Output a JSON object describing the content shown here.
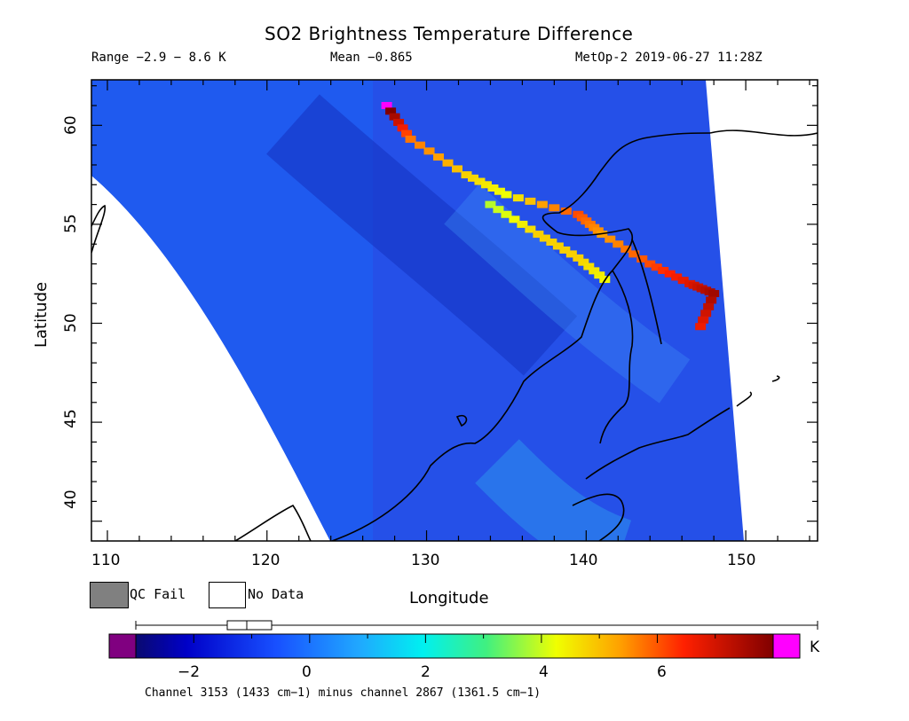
{
  "title": "SO2 Brightness Temperature Difference",
  "range_text": "Range −2.9 − 8.6 K",
  "mean_text": "Mean −0.865",
  "satellite_text": "MetOp-2 2019-06-27 11:28Z",
  "axes": {
    "xlabel": "Longitude",
    "ylabel": "Latitude",
    "x_range": [
      109,
      154.5
    ],
    "y_range": [
      39,
      62.3
    ],
    "x_ticks": [
      "110",
      "120",
      "130",
      "140",
      "150"
    ],
    "y_ticks": [
      "40",
      "45",
      "50",
      "55",
      "60"
    ]
  },
  "legend": {
    "qc_fail_label": "QC Fail",
    "no_data_label": "No Data",
    "qc_fail_color": "#808080",
    "no_data_color": "#ffffff"
  },
  "colorbar": {
    "unit": "K",
    "min": -3,
    "max": 8,
    "tick_labels": [
      "−2",
      "0",
      "2",
      "4",
      "6"
    ],
    "underflow_color": "#800080",
    "overflow_color": "#ff00ff",
    "boxplot_summary": "box ≈ −1.4 to −0.6, median ≈ −1.0",
    "caption": "Channel 3153 (1433 cm−1) minus channel 2867 (1361.5 cm−1)"
  },
  "chart_data": {
    "type": "heatmap",
    "title": "SO2 Brightness Temperature Difference",
    "xlabel": "Longitude",
    "ylabel": "Latitude",
    "xlim": [
      109,
      154.5
    ],
    "ylim": [
      39,
      62.3
    ],
    "value_range": [
      -2.9,
      8.6
    ],
    "mean": -0.865,
    "swath": "Satellite swath covering roughly 111°E–150°E; white areas outside swath = No Data",
    "high_value_band": [
      {
        "lon": 127.5,
        "lat": 61.0,
        "value": 8.6
      },
      {
        "lon": 129.0,
        "lat": 59.3,
        "value": 5.0
      },
      {
        "lon": 132.5,
        "lat": 57.5,
        "value": 4.0
      },
      {
        "lon": 135.0,
        "lat": 56.5,
        "value": 3.5
      },
      {
        "lon": 139.5,
        "lat": 55.5,
        "value": 5.5
      },
      {
        "lon": 141.0,
        "lat": 54.5,
        "value": 4.5
      },
      {
        "lon": 144.0,
        "lat": 53.0,
        "value": 5.5
      },
      {
        "lon": 146.5,
        "lat": 52.0,
        "value": 6.5
      },
      {
        "lon": 148.0,
        "lat": 51.5,
        "value": 7.5
      },
      {
        "lon": 147.0,
        "lat": 49.5,
        "value": 6.0
      }
    ],
    "secondary_band": [
      {
        "lon": 134.0,
        "lat": 56.0,
        "value": 3.0
      },
      {
        "lon": 137.0,
        "lat": 54.5,
        "value": 4.0
      },
      {
        "lon": 139.5,
        "lat": 53.3,
        "value": 4.0
      },
      {
        "lon": 141.5,
        "lat": 52.0,
        "value": 3.5
      }
    ],
    "background_value_approx": -1.0
  }
}
